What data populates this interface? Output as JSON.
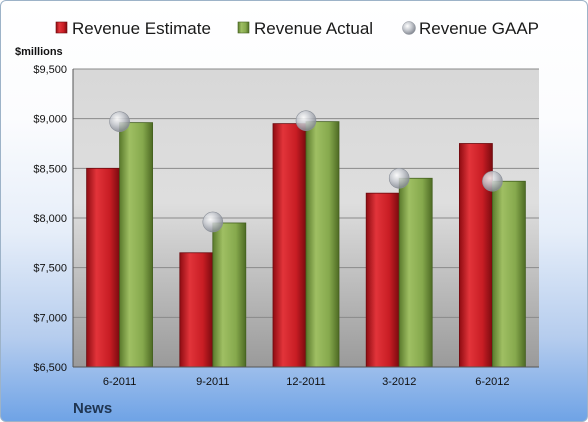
{
  "chart_data": {
    "type": "bar",
    "unit_label": "$millions",
    "footer_label": "News",
    "categories": [
      "6-2011",
      "9-2011",
      "12-2011",
      "3-2012",
      "6-2012"
    ],
    "series": [
      {
        "name": "Revenue Estimate",
        "kind": "bar",
        "color": "#d11f26",
        "values": [
          8500,
          7650,
          8950,
          8250,
          8750
        ]
      },
      {
        "name": "Revenue Actual",
        "kind": "bar",
        "color": "#86a94d",
        "values": [
          8960,
          7950,
          8970,
          8400,
          8370
        ]
      },
      {
        "name": "Revenue GAAP",
        "kind": "marker",
        "color": "#b8bcc4",
        "values": [
          8970,
          7960,
          8980,
          8400,
          8370
        ]
      }
    ],
    "yticks": [
      "$6,500",
      "$7,000",
      "$7,500",
      "$8,000",
      "$8,500",
      "$9,000",
      "$9,500"
    ],
    "ylim": [
      6500,
      9500
    ],
    "grid": true,
    "legend_position": "top"
  }
}
